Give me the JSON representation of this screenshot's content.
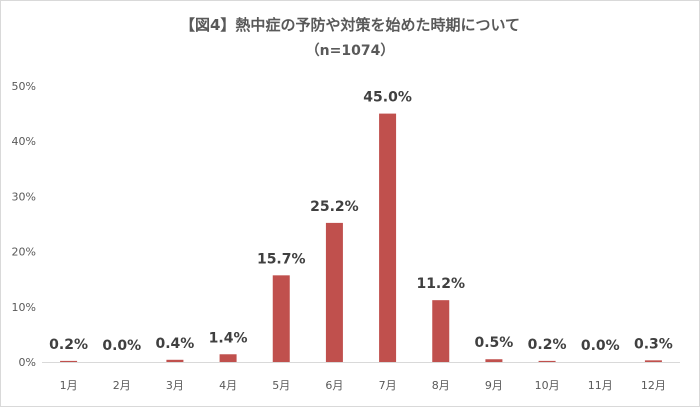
{
  "chart_data": {
    "type": "bar",
    "title": "【図4】熱中症の予防や対策を始めた時期について",
    "subtitle": "（n=1074）",
    "categories": [
      "1月",
      "2月",
      "3月",
      "4月",
      "5月",
      "6月",
      "7月",
      "8月",
      "9月",
      "10月",
      "11月",
      "12月"
    ],
    "values": [
      0.2,
      0.0,
      0.4,
      1.4,
      15.7,
      25.2,
      45.0,
      11.2,
      0.5,
      0.2,
      0.0,
      0.3
    ],
    "data_labels": [
      "0.2%",
      "0.0%",
      "0.4%",
      "1.4%",
      "15.7%",
      "25.2%",
      "45.0%",
      "11.2%",
      "0.5%",
      "0.2%",
      "0.0%",
      "0.3%"
    ],
    "y_ticks": [
      0,
      10,
      20,
      30,
      40,
      50
    ],
    "y_tick_labels": [
      "0%",
      "10%",
      "20%",
      "30%",
      "40%",
      "50%"
    ],
    "ylim": [
      0,
      50
    ],
    "grid": false,
    "legend": "none",
    "bar_color": "#c0504d",
    "axis_color": "#d9d9d9"
  }
}
